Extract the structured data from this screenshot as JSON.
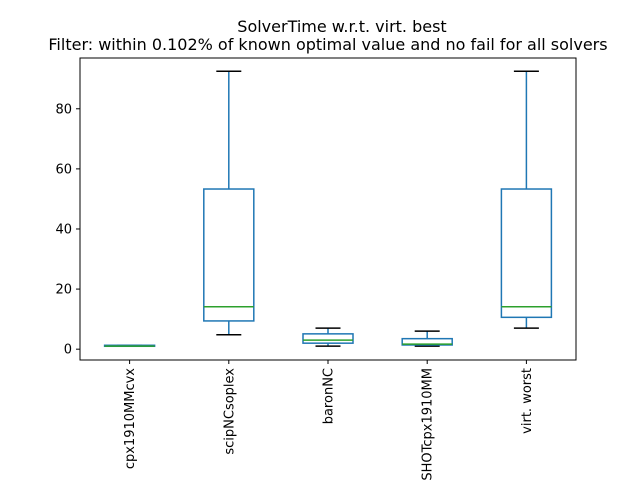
{
  "chart_data": {
    "type": "box",
    "title": "SolverTime w.r.t. virt. best",
    "subtitle": "Filter: within 0.102% of known optimal value and no fail for all solvers",
    "xlabel": "",
    "ylabel": "",
    "ylim": [
      -3.6,
      96.9
    ],
    "yticks": [
      0,
      20,
      40,
      60,
      80
    ],
    "grid": false,
    "categories": [
      "cpx1910MMcvx",
      "scipNCsoplex",
      "baronNC",
      "SHOTcpx1910MM",
      "virt. worst"
    ],
    "boxes": [
      {
        "name": "cpx1910MMcvx",
        "whisker_low": 1.0,
        "q1": 1.0,
        "median": 1.0,
        "q3": 1.3,
        "whisker_high": 1.3
      },
      {
        "name": "scipNCsoplex",
        "whisker_low": 4.8,
        "q1": 9.4,
        "median": 14.1,
        "q3": 53.3,
        "whisker_high": 92.5
      },
      {
        "name": "baronNC",
        "whisker_low": 1.0,
        "q1": 2.0,
        "median": 3.0,
        "q3": 5.1,
        "whisker_high": 7.0
      },
      {
        "name": "SHOTcpx1910MM",
        "whisker_low": 1.0,
        "q1": 1.4,
        "median": 1.7,
        "q3": 3.5,
        "whisker_high": 6.0
      },
      {
        "name": "virt. worst",
        "whisker_low": 7.0,
        "q1": 10.6,
        "median": 14.1,
        "q3": 53.3,
        "whisker_high": 92.5
      }
    ],
    "colors": {
      "box": "#1f77b4",
      "median": "#2ca02c",
      "cap": "#000000",
      "axes": "#000000"
    }
  }
}
